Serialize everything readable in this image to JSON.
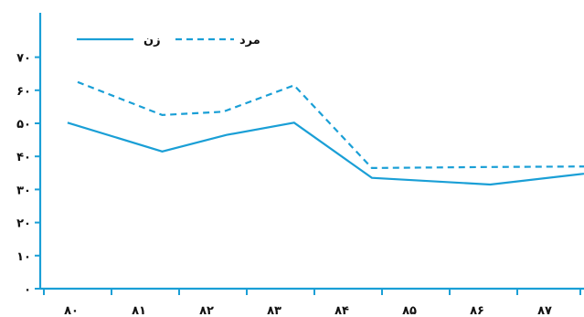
{
  "chart_data": {
    "type": "line",
    "x": [
      "۸۰",
      "۸۱",
      "۸۲",
      "۸۳",
      "۸۴",
      "۸۵",
      "۸۶",
      "۸۷"
    ],
    "ylim": [
      0,
      75
    ],
    "yticks": [
      "۰",
      "۱۰",
      "۲۰",
      "۳۰",
      "۴۰",
      "۵۰",
      "۶۰",
      "۷۰"
    ],
    "grid": false,
    "legend_position": "top-left",
    "series": [
      {
        "name": "زن",
        "style": "solid",
        "color": "#1a9fd6",
        "points": [
          [
            79.95,
            50.2
          ],
          [
            81.35,
            41.5
          ],
          [
            82.3,
            46.5
          ],
          [
            83.3,
            50.2
          ],
          [
            84.45,
            33.5
          ],
          [
            86.2,
            31.5
          ],
          [
            87.9,
            35.5
          ]
        ]
      },
      {
        "name": "مرد",
        "style": "dashed",
        "color": "#1a9fd6",
        "points": [
          [
            80.1,
            62.5
          ],
          [
            81.35,
            52.5
          ],
          [
            82.25,
            53.5
          ],
          [
            83.3,
            61.5
          ],
          [
            84.45,
            36.5
          ],
          [
            86.2,
            36.8
          ],
          [
            87.9,
            37.0
          ]
        ]
      }
    ]
  }
}
